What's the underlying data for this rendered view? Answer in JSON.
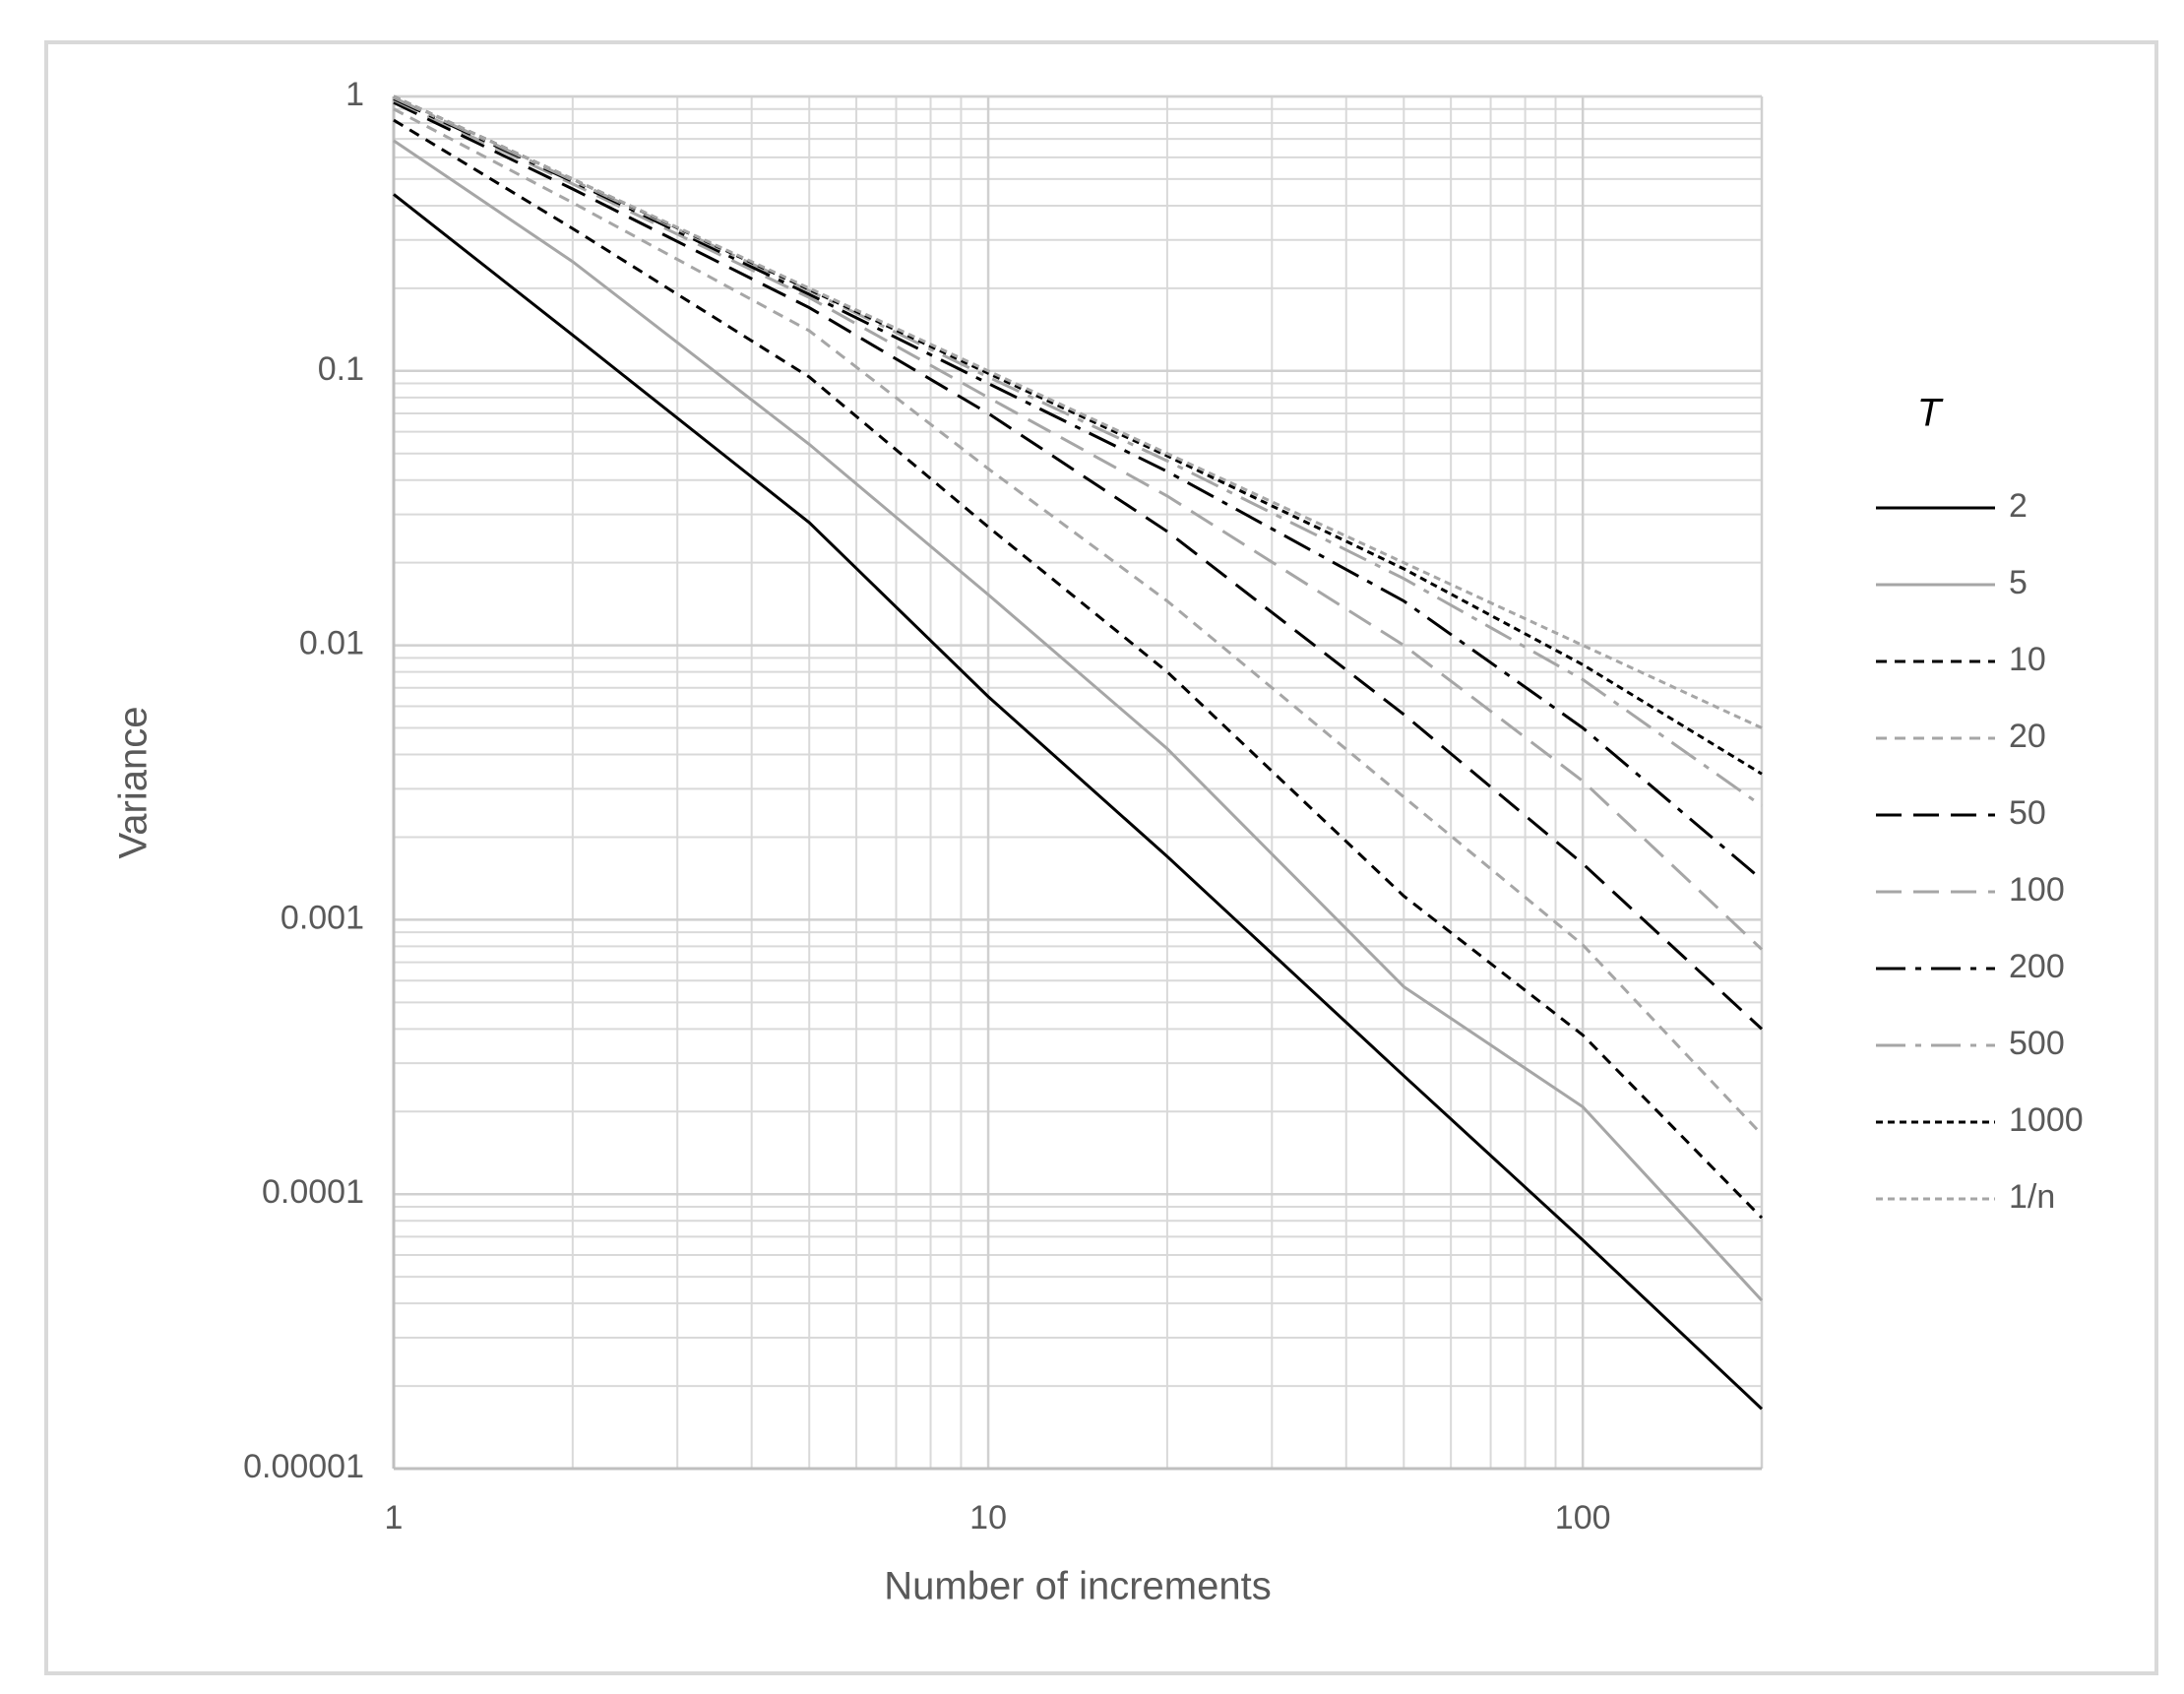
{
  "chart_data": {
    "type": "line",
    "x_label": "Number of increments",
    "y_label": "Variance",
    "legend_title": "T",
    "x": [
      1,
      2,
      5,
      10,
      20,
      50,
      100,
      200
    ],
    "xlim": [
      1,
      200
    ],
    "xticks": [
      1,
      10,
      100
    ],
    "ylim": [
      1e-05,
      1
    ],
    "yticks": [
      1e-05,
      0.0001,
      0.001,
      0.01,
      0.1,
      1
    ],
    "xscale": "log",
    "yscale": "log",
    "grid": true,
    "legend": "right",
    "series": [
      {
        "name": "2",
        "color": "#000000",
        "dash": "solid",
        "values": [
          0.44,
          0.135,
          0.028,
          0.0065,
          0.0017,
          0.00027,
          6.8e-05,
          1.65e-05
        ]
      },
      {
        "name": "5",
        "color": "#a6a6a6",
        "dash": "solid",
        "values": [
          0.69,
          0.25,
          0.054,
          0.0153,
          0.0042,
          0.00057,
          0.000208,
          4.1e-05
        ]
      },
      {
        "name": "10",
        "color": "#000000",
        "dash": "dash",
        "values": [
          0.82,
          0.33,
          0.095,
          0.027,
          0.008,
          0.00122,
          0.00038,
          8.2e-05
        ]
      },
      {
        "name": "20",
        "color": "#a6a6a6",
        "dash": "dash",
        "values": [
          0.9,
          0.41,
          0.14,
          0.044,
          0.0145,
          0.0028,
          0.00081,
          0.000165
        ]
      },
      {
        "name": "50",
        "color": "#000000",
        "dash": "longdash",
        "values": [
          0.95,
          0.46,
          0.17,
          0.07,
          0.026,
          0.0056,
          0.0016,
          0.0004
        ]
      },
      {
        "name": "100",
        "color": "#a6a6a6",
        "dash": "longdash",
        "values": [
          0.97,
          0.48,
          0.185,
          0.08,
          0.035,
          0.01,
          0.0032,
          0.00078
        ]
      },
      {
        "name": "200",
        "color": "#000000",
        "dash": "dashdot",
        "values": [
          0.98,
          0.49,
          0.19,
          0.09,
          0.043,
          0.0145,
          0.005,
          0.0014
        ]
      },
      {
        "name": "500",
        "color": "#a6a6a6",
        "dash": "dashdot",
        "values": [
          0.99,
          0.495,
          0.196,
          0.095,
          0.047,
          0.0175,
          0.0075,
          0.0026
        ]
      },
      {
        "name": "1000",
        "color": "#000000",
        "dash": "shortdash",
        "values": [
          1,
          0.5,
          0.198,
          0.098,
          0.049,
          0.019,
          0.0085,
          0.0034
        ]
      },
      {
        "name": "1/n",
        "color": "#a6a6a6",
        "dash": "shortdash",
        "values": [
          1,
          0.5,
          0.2,
          0.1,
          0.05,
          0.02,
          0.01,
          0.005
        ]
      }
    ]
  }
}
